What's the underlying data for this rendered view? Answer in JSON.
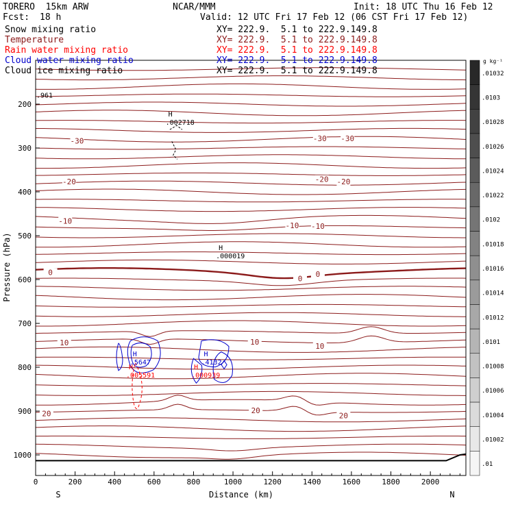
{
  "header": {
    "model": "TORERO  15km ARW",
    "center": "NCAR/MMM",
    "init": "Init: 18 UTC Thu 16 Feb 12",
    "fcst_label": "Fcst:",
    "fcst_value": "18 h",
    "valid": "Valid: 12 UTC Fri 17 Feb 12 (06 CST Fri 17 Feb 12)"
  },
  "fields": [
    {
      "name": "Snow mixing ratio",
      "xy": "XY= 222.9.  5.1 to 222.9.149.8",
      "color": "#000000"
    },
    {
      "name": "Temperature",
      "xy": "XY= 222.9.  5.1 to 222.9.149.8",
      "color": "#8b1a1a"
    },
    {
      "name": "Rain water mixing ratio",
      "xy": "XY= 222.9.  5.1 to 222.9.149.8",
      "color": "#ff0000"
    },
    {
      "name": "Cloud water mixing ratio",
      "xy": "XY= 222.9.  5.1 to 222.9.149.8",
      "color": "#0000cc"
    },
    {
      "name": "Cloud ice mixing ratio",
      "xy": "XY= 222.9.  5.1 to 222.9.149.8",
      "color": "#000000"
    }
  ],
  "chart_data": {
    "type": "contour-cross-section",
    "xlabel": "Distance (km)",
    "ylabel": "Pressure (hPa)",
    "xlim": [
      0,
      2180
    ],
    "ylim": [
      1050,
      100
    ],
    "x_ticks": [
      0,
      200,
      400,
      600,
      800,
      1000,
      1200,
      1400,
      1600,
      1800,
      2000
    ],
    "y_ticks": [
      200,
      300,
      400,
      500,
      600,
      700,
      800,
      900,
      1000
    ],
    "endpoints": {
      "left": "S",
      "right": "N"
    },
    "temperature_isotherms": [
      {
        "label": "-30",
        "pressure": 270
      },
      {
        "label": "-20",
        "pressure": 375
      },
      {
        "label": "-10",
        "pressure": 490
      },
      {
        "label": "0",
        "pressure": 590
      },
      {
        "label": "10",
        "pressure": 745
      },
      {
        "label": "20",
        "pressure": 910
      }
    ],
    "temperature_labels": [
      {
        "text": "-30",
        "x": 210,
        "p": 285
      },
      {
        "text": "-30",
        "x": 1440,
        "p": 280
      },
      {
        "text": "-30",
        "x": 1580,
        "p": 280
      },
      {
        "text": "-20",
        "x": 170,
        "p": 378
      },
      {
        "text": "-20",
        "x": 1450,
        "p": 373
      },
      {
        "text": "-20",
        "x": 1560,
        "p": 378
      },
      {
        "text": "-10",
        "x": 150,
        "p": 468
      },
      {
        "text": "-10",
        "x": 1300,
        "p": 478
      },
      {
        "text": "-10",
        "x": 1430,
        "p": 480
      },
      {
        "text": "0",
        "x": 75,
        "p": 585
      },
      {
        "text": "0",
        "x": 1340,
        "p": 599
      },
      {
        "text": "0",
        "x": 1430,
        "p": 589
      },
      {
        "text": "10",
        "x": 145,
        "p": 745
      },
      {
        "text": "10",
        "x": 1110,
        "p": 744
      },
      {
        "text": "10",
        "x": 1440,
        "p": 753
      },
      {
        "text": "20",
        "x": 55,
        "p": 907
      },
      {
        "text": "20",
        "x": 1115,
        "p": 900
      },
      {
        "text": "20",
        "x": 1560,
        "p": 912
      }
    ],
    "maxima": [
      {
        "marker": "H",
        "value": ".002718",
        "x": 700,
        "p": 228,
        "field": "Snow mixing ratio"
      },
      {
        "marker": "H",
        "value": ".000019",
        "x": 955,
        "p": 533,
        "field": "Cloud ice mixing ratio"
      },
      {
        "marker": "H",
        "value": ".5647",
        "x": 520,
        "p": 775,
        "field": "Cloud water mixing ratio"
      },
      {
        "marker": "H",
        "value": ".4132",
        "x": 880,
        "p": 775,
        "field": "Cloud water mixing ratio"
      },
      {
        "marker": "H",
        "value": ".005591",
        "x": 500,
        "p": 805,
        "field": "Rain water mixing ratio"
      },
      {
        "marker": "H",
        "value": ".000939",
        "x": 830,
        "p": 805,
        "field": "Rain water mixing ratio"
      }
    ],
    "corner_label": ".961",
    "colorbar": {
      "units": "g kg⁻¹",
      "labels": [
        ".01032",
        ".0103",
        ".01028",
        ".01026",
        ".01024",
        ".01022",
        ".0102",
        ".01018",
        ".01016",
        ".01014",
        ".01012",
        ".0101",
        ".01008",
        ".01006",
        ".01004",
        ".01002",
        ".01"
      ]
    }
  }
}
